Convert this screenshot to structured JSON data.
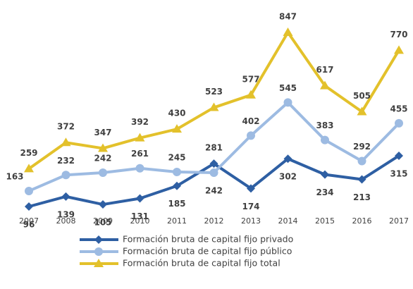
{
  "chart_data": {
    "type": "line",
    "categories": [
      "2007",
      "2008",
      "2009",
      "2010",
      "2011",
      "2012",
      "2013",
      "2014",
      "2015",
      "2016",
      "2017"
    ],
    "series": [
      {
        "name": "Formación bruta de capital fijo privado",
        "color": "#2e5fa3",
        "marker": "diamond",
        "values": [
          96,
          139,
          105,
          131,
          185,
          281,
          174,
          302,
          234,
          213,
          315
        ]
      },
      {
        "name": "Formación bruta de capital fijo público",
        "color": "#9dbbe2",
        "marker": "circle",
        "values": [
          163,
          232,
          242,
          261,
          245,
          242,
          402,
          545,
          383,
          292,
          455
        ]
      },
      {
        "name": "Formación bruta de capital fijo total",
        "color": "#e3c12b",
        "marker": "triangle",
        "values": [
          259,
          372,
          347,
          392,
          430,
          523,
          577,
          847,
          617,
          505,
          770
        ]
      }
    ],
    "legend": "bottom"
  }
}
